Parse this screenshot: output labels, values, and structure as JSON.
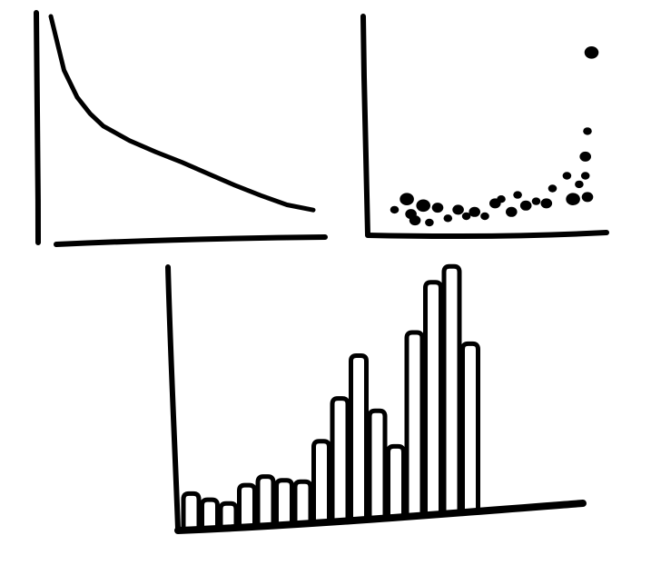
{
  "colors": {
    "ink": "#000000",
    "background": "#ffffff"
  },
  "chart_data": [
    {
      "type": "line",
      "title": "",
      "xlabel": "",
      "ylabel": "",
      "grid": false,
      "series": [
        {
          "x": [
            0.0,
            0.5,
            1.0,
            1.5,
            2.0,
            3.0,
            4.0,
            5.0,
            6.0,
            7.0,
            8.0,
            9.0,
            10.0
          ],
          "values": [
            10.0,
            7.4,
            6.1,
            5.3,
            4.7,
            4.0,
            3.45,
            2.95,
            2.4,
            1.85,
            1.35,
            0.9,
            0.65
          ]
        }
      ],
      "xlim": [
        0,
        10
      ],
      "ylim": [
        0,
        10
      ]
    },
    {
      "type": "scatter",
      "title": "",
      "xlabel": "",
      "ylabel": "",
      "grid": false,
      "series": [
        {
          "x": [
            0.2,
            0.8,
            1.0,
            1.2,
            1.6,
            1.9,
            2.3,
            2.8,
            3.3,
            3.7,
            4.1,
            4.6,
            5.1,
            5.4,
            5.9,
            6.2,
            6.6,
            7.1,
            7.6,
            7.9,
            8.6,
            8.9,
            9.2,
            9.5,
            9.5,
            9.6,
            9.6,
            9.8
          ],
          "values": [
            0.9,
            1.4,
            0.7,
            0.4,
            1.1,
            0.3,
            1.0,
            0.5,
            0.9,
            0.6,
            0.8,
            0.6,
            1.2,
            1.4,
            0.8,
            1.6,
            1.1,
            1.3,
            1.2,
            1.9,
            2.5,
            1.4,
            2.1,
            2.5,
            3.4,
            1.5,
            4.6,
            8.3
          ],
          "sizes": [
            2,
            4,
            3,
            3,
            4,
            2,
            3,
            2,
            3,
            2,
            3,
            2,
            3,
            2,
            3,
            2,
            3,
            2,
            3,
            2,
            2,
            4,
            2,
            2,
            3,
            3,
            2,
            4
          ]
        }
      ],
      "xlim": [
        0,
        10
      ],
      "ylim": [
        0,
        10
      ]
    },
    {
      "type": "bar",
      "title": "",
      "xlabel": "",
      "ylabel": "",
      "grid": false,
      "categories": [
        "",
        "",
        "",
        "",
        "",
        "",
        "",
        "",
        "",
        "",
        "",
        "",
        "",
        "",
        "",
        "",
        "",
        "",
        "",
        ""
      ],
      "values": [
        1.4,
        1.1,
        0.9,
        1.6,
        1.9,
        1.7,
        1.6,
        3.2,
        4.9,
        6.6,
        4.3,
        2.8,
        7.4,
        9.4,
        10.0,
        6.8,
        0.0,
        0.0,
        0.0,
        0.0
      ],
      "ylim": [
        0,
        10.5
      ]
    }
  ]
}
